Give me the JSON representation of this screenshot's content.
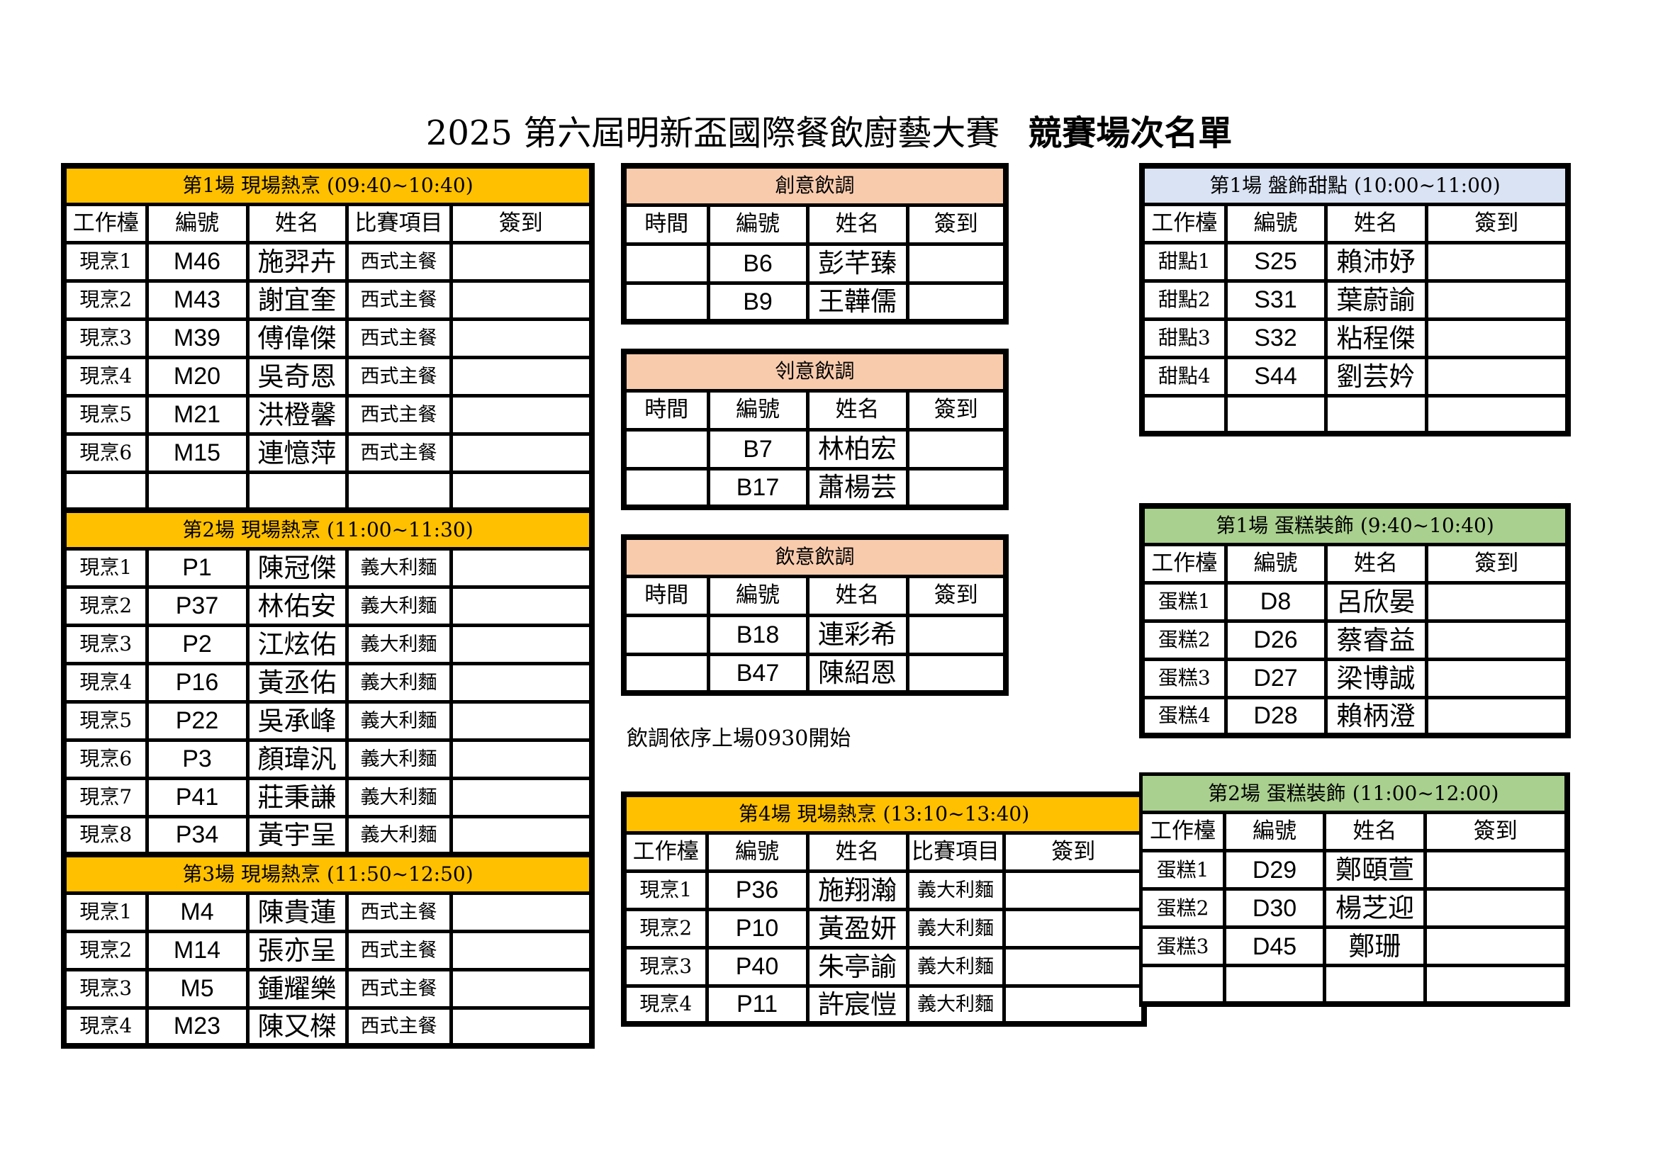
{
  "title": {
    "main": "2025 第六屆明新盃國際餐飲廚藝大賽",
    "sub": "競賽場次名單"
  },
  "note": "飲調依序上場0930開始",
  "tables": [
    {
      "id": "hot1",
      "title": "第1場 現場熱烹 (09:40~10:40)",
      "color": "#FFC000",
      "header": [
        "工作檯",
        "編號",
        "姓名",
        "比賽項目",
        "簽到"
      ],
      "rows": [
        [
          "現烹1",
          "M46",
          "施羿卉",
          "西式主餐"
        ],
        [
          "現烹2",
          "M43",
          "謝宜奎",
          "西式主餐"
        ],
        [
          "現烹3",
          "M39",
          "傅偉傑",
          "西式主餐"
        ],
        [
          "現烹4",
          "M20",
          "吳奇恩",
          "西式主餐"
        ],
        [
          "現烹5",
          "M21",
          "洪橙馨",
          "西式主餐"
        ],
        [
          "現烹6",
          "M15",
          "連憶萍",
          "西式主餐"
        ],
        [
          "",
          "",
          "",
          ""
        ]
      ]
    },
    {
      "id": "hot2",
      "title": "第2場 現場熱烹 (11:00~11:30)",
      "color": "#FFC000",
      "header": null,
      "rows": [
        [
          "現烹1",
          "P1",
          "陳冠傑",
          "義大利麵"
        ],
        [
          "現烹2",
          "P37",
          "林佑安",
          "義大利麵"
        ],
        [
          "現烹3",
          "P2",
          "江炫佑",
          "義大利麵"
        ],
        [
          "現烹4",
          "P16",
          "黃丞佑",
          "義大利麵"
        ],
        [
          "現烹5",
          "P22",
          "吳承峰",
          "義大利麵"
        ],
        [
          "現烹6",
          "P3",
          "顏瑋汎",
          "義大利麵"
        ],
        [
          "現烹7",
          "P41",
          "莊秉謙",
          "義大利麵"
        ],
        [
          "現烹8",
          "P34",
          "黃宇呈",
          "義大利麵"
        ]
      ]
    },
    {
      "id": "hot3",
      "title": "第3場 現場熱烹 (11:50~12:50)",
      "color": "#FFC000",
      "header": null,
      "rows": [
        [
          "現烹1",
          "M4",
          "陳貴蓮",
          "西式主餐"
        ],
        [
          "現烹2",
          "M14",
          "張亦呈",
          "西式主餐"
        ],
        [
          "現烹3",
          "M5",
          "鍾耀樂",
          "西式主餐"
        ],
        [
          "現烹4",
          "M23",
          "陳又榤",
          "西式主餐"
        ]
      ]
    },
    {
      "id": "drink1",
      "title": "創意飲調",
      "color": "#F8CBAD",
      "header": [
        "時間",
        "編號",
        "姓名",
        "簽到"
      ],
      "rows": [
        [
          "",
          "B6",
          "彭芊臻"
        ],
        [
          "",
          "B9",
          "王韡儒"
        ]
      ]
    },
    {
      "id": "drink2",
      "title": "刢意飲調",
      "color": "#F8CBAD",
      "header": [
        "時間",
        "編號",
        "姓名",
        "簽到"
      ],
      "rows": [
        [
          "",
          "B7",
          "林柏宏"
        ],
        [
          "",
          "B17",
          "蕭楊芸"
        ]
      ]
    },
    {
      "id": "drink3",
      "title": "飲意飲調",
      "color": "#F8CBAD",
      "header": [
        "時間",
        "編號",
        "姓名",
        "簽到"
      ],
      "rows": [
        [
          "",
          "B18",
          "連彩希"
        ],
        [
          "",
          "B47",
          "陳紹恩"
        ]
      ]
    },
    {
      "id": "hot4",
      "title": "第4場 現場熱烹 (13:10~13:40)",
      "color": "#FFC000",
      "header": [
        "工作檯",
        "編號",
        "姓名",
        "比賽項目",
        "簽到"
      ],
      "rows": [
        [
          "現烹1",
          "P36",
          "施翔瀚",
          "義大利麵"
        ],
        [
          "現烹2",
          "P10",
          "黃盈妍",
          "義大利麵"
        ],
        [
          "現烹3",
          "P40",
          "朱亭諭",
          "義大利麵"
        ],
        [
          "現烹4",
          "P11",
          "許宸愷",
          "義大利麵"
        ]
      ]
    },
    {
      "id": "dessert1",
      "title": "第1場 盤飾甜點 (10:00~11:00)",
      "color": "#DAE3F3",
      "header": [
        "工作檯",
        "編號",
        "姓名",
        "簽到"
      ],
      "rows": [
        [
          "甜點1",
          "S25",
          "賴沛妤"
        ],
        [
          "甜點2",
          "S31",
          "葉蔚諭"
        ],
        [
          "甜點3",
          "S32",
          "粘程傑"
        ],
        [
          "甜點4",
          "S44",
          "劉芸妗"
        ],
        [
          "",
          "",
          ""
        ]
      ]
    },
    {
      "id": "cake1",
      "title": "第1場 蛋糕裝飾 (9:40~10:40)",
      "color": "#A9D08E",
      "header": [
        "工作檯",
        "編號",
        "姓名",
        "簽到"
      ],
      "rows": [
        [
          "蛋糕1",
          "D8",
          "呂欣晏"
        ],
        [
          "蛋糕2",
          "D26",
          "蔡睿益"
        ],
        [
          "蛋糕3",
          "D27",
          "梁博誠"
        ],
        [
          "蛋糕4",
          "D28",
          "賴柄澄"
        ]
      ]
    },
    {
      "id": "cake2",
      "title": "第2場 蛋糕裝飾 (11:00~12:00)",
      "color": "#A9D08E",
      "header": [
        "工作檯",
        "編號",
        "姓名",
        "簽到"
      ],
      "rows": [
        [
          "蛋糕1",
          "D29",
          "鄭頤萱"
        ],
        [
          "蛋糕2",
          "D30",
          "楊芝迎"
        ],
        [
          "蛋糕3",
          "D45",
          "鄭珊"
        ],
        [
          "",
          "",
          ""
        ]
      ]
    }
  ]
}
